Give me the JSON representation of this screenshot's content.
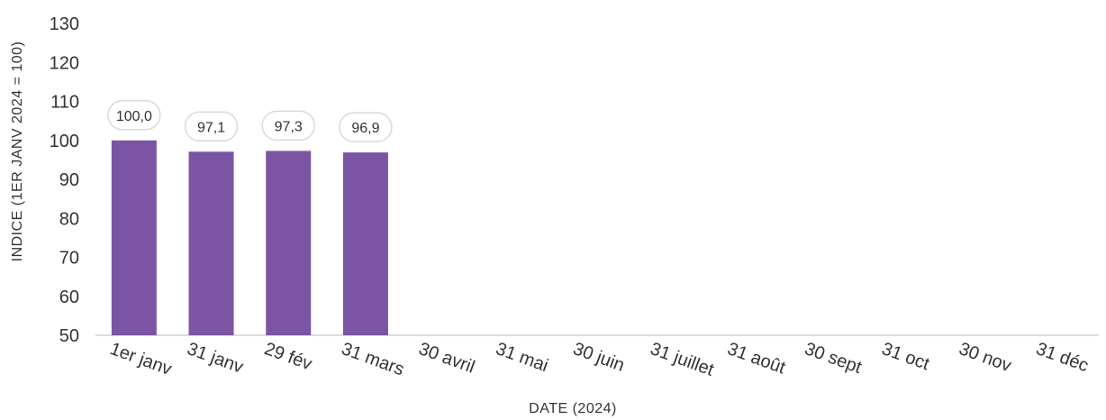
{
  "chart_data": {
    "type": "bar",
    "title": "",
    "xlabel": "DATE (2024)",
    "ylabel": "INDICE (1ER JANV 2024 = 100)",
    "ylim": [
      50,
      130
    ],
    "yticks": [
      50,
      60,
      70,
      80,
      90,
      100,
      110,
      120,
      130
    ],
    "categories": [
      "1er janv",
      "31 janv",
      "29 fév",
      "31 mars",
      "30 avril",
      "31 mai",
      "30 juin",
      "31 juillet",
      "31 août",
      "30 sept",
      "31 oct",
      "30 nov",
      "31 déc"
    ],
    "values": [
      100.0,
      97.1,
      97.3,
      96.9,
      null,
      null,
      null,
      null,
      null,
      null,
      null,
      null,
      null
    ],
    "data_labels": [
      "100,0",
      "97,1",
      "97,3",
      "96,9",
      "",
      "",
      "",
      "",
      "",
      "",
      "",
      "",
      ""
    ],
    "grid": false,
    "legend": "none",
    "colors": {
      "bar": "#7b54a3",
      "axis": "#dddddd",
      "label_border": "#d9d9d9",
      "text": "#333333"
    }
  }
}
